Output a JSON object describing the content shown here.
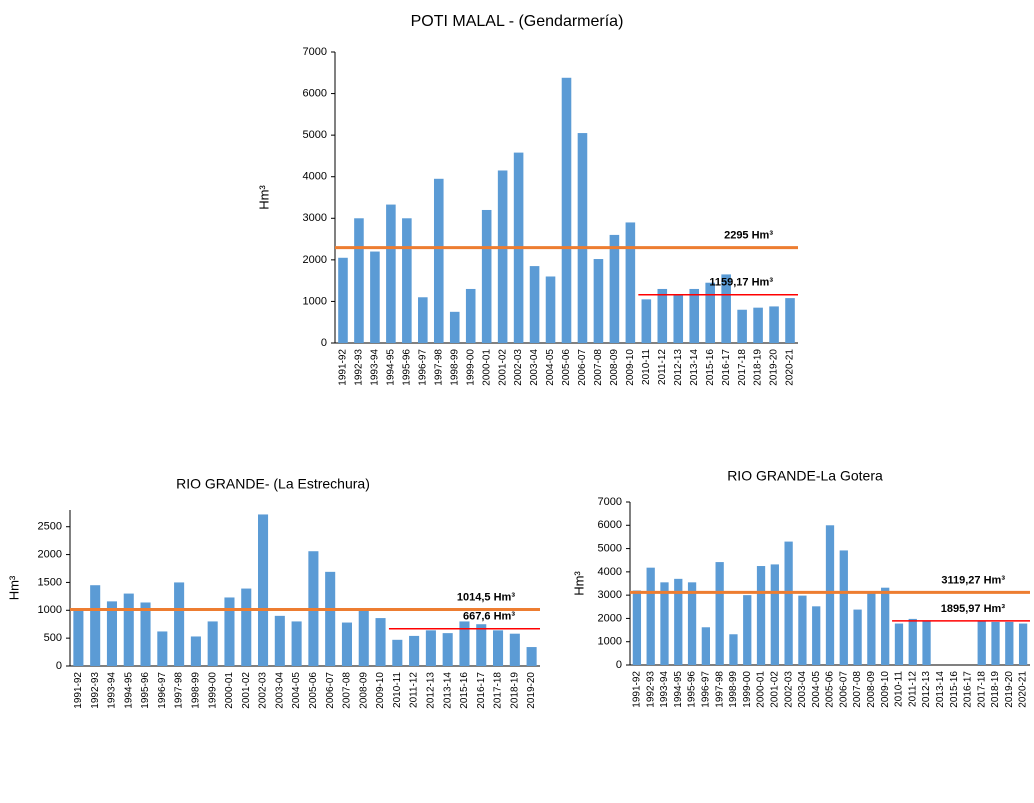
{
  "chart_data": [
    {
      "type": "bar",
      "title": "POTI MALAL - (Gendarmería)",
      "y_label": "Hm³",
      "categories": [
        "1991-92",
        "1992-93",
        "1993-94",
        "1994-95",
        "1995-96",
        "1996-97",
        "1997-98",
        "1998-99",
        "1999-00",
        "2000-01",
        "2001-02",
        "2002-03",
        "2003-04",
        "2004-05",
        "2005-06",
        "2006-07",
        "2007-08",
        "2008-09",
        "2009-10",
        "2010-11",
        "2011-12",
        "2012-13",
        "2013-14",
        "2015-16",
        "2016-17",
        "2017-18",
        "2018-19",
        "2019-20",
        "2020-21"
      ],
      "values": [
        2050,
        3000,
        2200,
        3330,
        3000,
        1100,
        3950,
        750,
        1300,
        3200,
        4150,
        4580,
        1850,
        1600,
        6380,
        5050,
        2020,
        2600,
        2900,
        1050,
        1300,
        1150,
        1300,
        1450,
        1650,
        800,
        850,
        880,
        1080
      ],
      "color": "#5b9bd5",
      "ylim": [
        0,
        7000
      ],
      "yticks": [
        0,
        1000,
        2000,
        3000,
        4000,
        5000,
        6000,
        7000
      ],
      "reference_lines": [
        {
          "value": 2295,
          "label": "2295 Hm³",
          "color": "#ed7d31"
        },
        {
          "value": 1159.17,
          "label": "1159,17 Hm³",
          "color": "#ff0000",
          "from": "2010-11"
        }
      ]
    },
    {
      "type": "bar",
      "title": "RIO GRANDE- (La Estrechura)",
      "y_label": "Hm³",
      "categories": [
        "1991-92",
        "1992-93",
        "1993-94",
        "1994-95",
        "1995-96",
        "1996-97",
        "1997-98",
        "1998-99",
        "1999-00",
        "2000-01",
        "2001-02",
        "2002-03",
        "2003-04",
        "2004-05",
        "2005-06",
        "2006-07",
        "2007-08",
        "2008-09",
        "2009-10",
        "2010-11",
        "2011-12",
        "2012-13",
        "2013-14",
        "2015-16",
        "2016-17",
        "2017-18",
        "2018-19",
        "2019-20"
      ],
      "values": [
        1040,
        1450,
        1160,
        1300,
        1140,
        620,
        1500,
        530,
        800,
        1230,
        1390,
        2720,
        900,
        800,
        2060,
        1690,
        780,
        1000,
        860,
        470,
        540,
        640,
        590,
        800,
        750,
        640,
        580,
        340
      ],
      "color": "#5b9bd5",
      "ylim": [
        0,
        2800
      ],
      "yticks": [
        0,
        500,
        1000,
        1500,
        2000,
        2500
      ],
      "reference_lines": [
        {
          "value": 1014.5,
          "label": "1014,5 Hm³",
          "color": "#ed7d31"
        },
        {
          "value": 667.6,
          "label": "667,6 Hm³",
          "color": "#ff0000",
          "from": "2010-11"
        }
      ]
    },
    {
      "type": "bar",
      "title": "RIO GRANDE-La Gotera",
      "y_label": "Hm³",
      "categories": [
        "1991-92",
        "1992-93",
        "1993-94",
        "1994-95",
        "1995-96",
        "1996-97",
        "1997-98",
        "1998-99",
        "1999-00",
        "2000-01",
        "2001-02",
        "2002-03",
        "2003-04",
        "2004-05",
        "2005-06",
        "2006-07",
        "2007-08",
        "2008-09",
        "2009-10",
        "2010-11",
        "2011-12",
        "2012-13",
        "2013-14",
        "2015-16",
        "2016-17",
        "2017-18",
        "2018-19",
        "2019-20",
        "2020-21"
      ],
      "values": [
        3200,
        4180,
        3550,
        3700,
        3550,
        1620,
        4420,
        1320,
        3000,
        4250,
        4320,
        5300,
        2980,
        2520,
        6000,
        4920,
        2380,
        3100,
        3320,
        1780,
        1980,
        1900,
        null,
        null,
        null,
        1900,
        1850,
        1850,
        1780
      ],
      "color": "#5b9bd5",
      "ylim": [
        0,
        7000
      ],
      "yticks": [
        0,
        1000,
        2000,
        3000,
        4000,
        5000,
        6000,
        7000
      ],
      "reference_lines": [
        {
          "value": 3119.27,
          "label": "3119,27 Hm³",
          "color": "#ed7d31"
        },
        {
          "value": 1895.97,
          "label": "1895,97 Hm³",
          "color": "#ff0000",
          "from": "2010-11"
        }
      ]
    }
  ]
}
